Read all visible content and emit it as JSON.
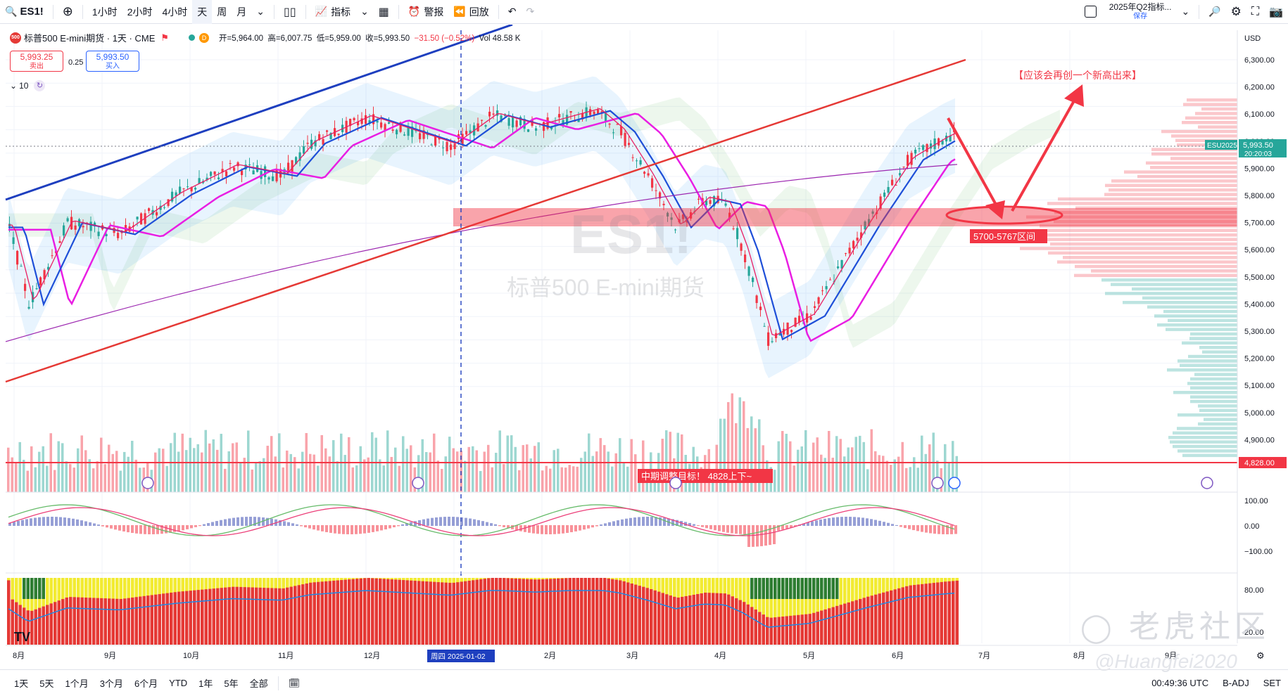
{
  "toolbar": {
    "symbol": "ES1!",
    "timeframes": [
      "1小时",
      "2小时",
      "4小时",
      "天",
      "周",
      "月"
    ],
    "active_timeframe": "天",
    "indicators_label": "指标",
    "alert_label": "警报",
    "replay_label": "回放",
    "layout_name": "2025年Q2指标...",
    "layout_sub": "保存"
  },
  "legend": {
    "title": "标普500 E-mini期货 · 1天 · CME",
    "open": "开=5,964.00",
    "high": "高=6,007.75",
    "low": "低=5,959.00",
    "close": "收=5,993.50",
    "change": "−31.50 (−0.52%)",
    "vol": "Vol 48.58 K",
    "sell_price": "5,993.25",
    "sell_label": "卖出",
    "spread": "0.25",
    "buy_price": "5,993.50",
    "buy_label": "买入",
    "indicator_count": "10"
  },
  "annotations": {
    "new_high": "【应该会再创一个新高出来】",
    "range": "5700-5767区间",
    "mid_target": "中期调整目标！ 4828上下~",
    "bg_symbol": "ES1!",
    "bg_name": "标普500 E-mini期货"
  },
  "price_axis": {
    "currency": "USD",
    "labels": [
      "6,300.00",
      "6,200.00",
      "6,100.00",
      "6,000.00",
      "5,900.00",
      "5,800.00",
      "5,700.00",
      "5,600.00",
      "5,500.00",
      "5,400.00",
      "5,300.00",
      "5,200.00",
      "5,100.00",
      "5,000.00",
      "4,900.00"
    ],
    "current_label": "5,993.50",
    "current_time": "20:20:03",
    "contract": "ESU2025",
    "line_label": "4,828.00",
    "osc_labels": [
      "100.00",
      "0.00",
      "−100.00"
    ],
    "rsi_labels": [
      "80.00",
      "20.00"
    ]
  },
  "time_axis": {
    "months": [
      "8月",
      "9月",
      "10月",
      "11月",
      "12月",
      "2月",
      "3月",
      "4月",
      "5月",
      "6月",
      "7月",
      "8月",
      "9月"
    ],
    "cursor_date": "周四 2025-01-02"
  },
  "bottombar": {
    "ranges": [
      "1天",
      "5天",
      "1个月",
      "3个月",
      "6个月",
      "YTD",
      "1年",
      "5年",
      "全部"
    ],
    "clock": "00:49:36 UTC",
    "adj": "B-ADJ",
    "set": "SET"
  },
  "watermark": {
    "community": "老虎社区",
    "author": "@Huangfei2020"
  },
  "colors": {
    "up": "#26a69a",
    "down": "#f23645",
    "accent": "#2962ff"
  }
}
